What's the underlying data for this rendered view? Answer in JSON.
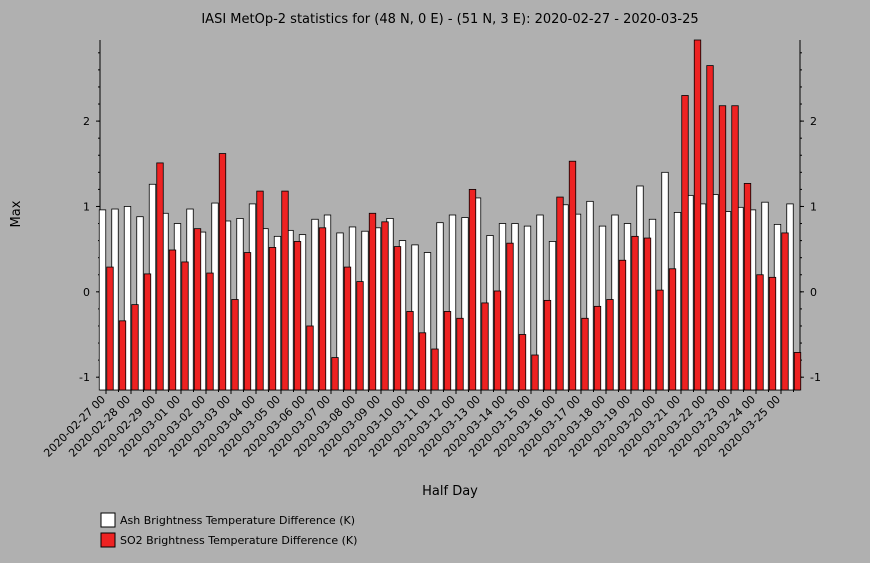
{
  "chart_data": {
    "type": "bar",
    "title": "IASI MetOp-2 statistics for (48 N, 0 E) - (51 N, 3 E): 2020-02-27 - 2020-03-25",
    "xlabel": "Half Day",
    "ylabel": "Max",
    "ylim": [
      -1.15,
      2.95
    ],
    "yticks": [
      -1,
      0,
      1,
      2
    ],
    "grid": false,
    "legend_position": "bottom-left",
    "x_tick_labels": [
      "2020-02-27 00",
      "2020-02-28 00",
      "2020-02-29 00",
      "2020-03-01 00",
      "2020-03-02 00",
      "2020-03-03 00",
      "2020-03-04 00",
      "2020-03-05 00",
      "2020-03-06 00",
      "2020-03-07 00",
      "2020-03-08 00",
      "2020-03-09 00",
      "2020-03-10 00",
      "2020-03-11 00",
      "2020-03-12 00",
      "2020-03-13 00",
      "2020-03-14 00",
      "2020-03-15 00",
      "2020-03-16 00",
      "2020-03-17 00",
      "2020-03-18 00",
      "2020-03-19 00",
      "2020-03-20 00",
      "2020-03-21 00",
      "2020-03-22 00",
      "2020-03-23 00",
      "2020-03-24 00",
      "2020-03-25 00"
    ],
    "series": [
      {
        "name": "Ash Brightness Temperature Difference (K)",
        "color": "#ffffff",
        "values": [
          0.96,
          0.97,
          1.0,
          0.88,
          1.26,
          0.92,
          0.8,
          0.97,
          0.7,
          1.04,
          0.83,
          0.86,
          1.03,
          0.74,
          0.65,
          0.72,
          0.67,
          0.85,
          0.9,
          0.69,
          0.76,
          0.71,
          0.75,
          0.86,
          0.6,
          0.55,
          0.46,
          0.81,
          0.9,
          0.87,
          1.1,
          0.66,
          0.8,
          0.8,
          0.77,
          0.9,
          0.59,
          1.02,
          0.91,
          1.06,
          0.77,
          0.9,
          0.8,
          1.24,
          0.85,
          1.4,
          0.93,
          1.13,
          1.03,
          1.14,
          0.94,
          0.99,
          0.96,
          1.05,
          0.79,
          1.03
        ]
      },
      {
        "name": "SO2 Brightness Temperature Difference (K)",
        "color": "#ee2222",
        "values": [
          0.29,
          -0.34,
          -0.15,
          0.21,
          1.51,
          0.49,
          0.35,
          0.74,
          0.22,
          1.62,
          -0.09,
          0.46,
          1.18,
          0.52,
          1.18,
          0.59,
          -0.4,
          0.75,
          -0.77,
          0.29,
          0.12,
          0.92,
          0.82,
          0.53,
          -0.23,
          -0.48,
          -0.67,
          -0.23,
          -0.31,
          1.2,
          -0.13,
          0.01,
          0.57,
          -0.5,
          -0.74,
          -0.1,
          1.11,
          1.53,
          -0.31,
          -0.17,
          -0.09,
          0.37,
          0.65,
          0.63,
          0.02,
          0.27,
          2.3,
          2.98,
          2.65,
          2.18,
          2.18,
          1.27,
          0.2,
          0.17,
          0.69,
          -0.71
        ]
      }
    ]
  }
}
